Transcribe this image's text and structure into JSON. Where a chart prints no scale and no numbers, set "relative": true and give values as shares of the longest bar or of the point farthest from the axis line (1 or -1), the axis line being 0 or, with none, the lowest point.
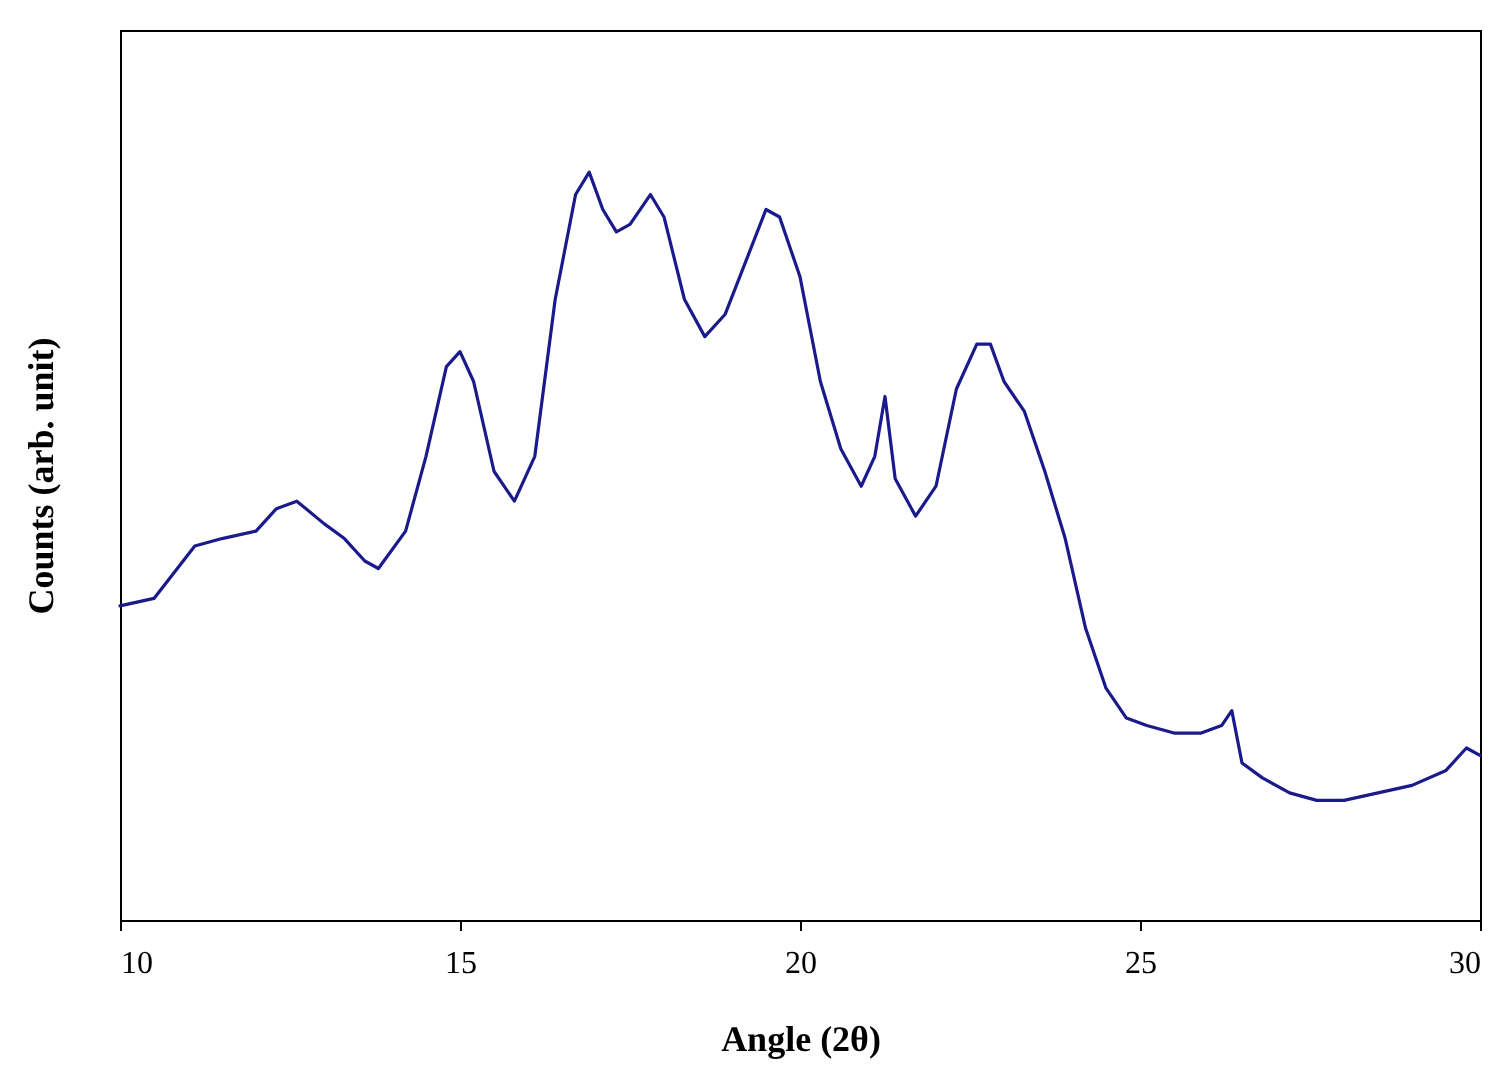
{
  "chart_data": {
    "type": "line",
    "xlabel": "Angle (2θ)",
    "ylabel": "Counts (arb. unit)",
    "relative": true,
    "xlim": [
      10,
      30
    ],
    "xticks": [
      10,
      15,
      20,
      25,
      30
    ],
    "grid": false,
    "tick_labels": "x",
    "marker": "none",
    "line_style": "solid",
    "series": [
      {
        "color": "#1a1a8c",
        "x": [
          10,
          10.5,
          11.1,
          11.5,
          12,
          12.3,
          12.6,
          13,
          13.3,
          13.6,
          13.8,
          14.2,
          14.5,
          14.8,
          15,
          15.2,
          15.5,
          15.8,
          16.1,
          16.4,
          16.7,
          16.9,
          17.1,
          17.3,
          17.5,
          17.8,
          18,
          18.3,
          18.6,
          18.9,
          19.2,
          19.5,
          19.7,
          20,
          20.3,
          20.6,
          20.9,
          21.1,
          21.25,
          21.4,
          21.7,
          22,
          22.3,
          22.6,
          22.8,
          23,
          23.3,
          23.6,
          23.9,
          24.2,
          24.5,
          24.8,
          25.1,
          25.5,
          25.9,
          26.2,
          26.35,
          26.5,
          26.8,
          27.2,
          27.6,
          28,
          28.5,
          29,
          29.5,
          29.8,
          30
        ],
        "values": [
          0.42,
          0.43,
          0.5,
          0.51,
          0.52,
          0.55,
          0.56,
          0.53,
          0.51,
          0.48,
          0.47,
          0.52,
          0.62,
          0.74,
          0.76,
          0.72,
          0.6,
          0.56,
          0.62,
          0.83,
          0.97,
          1.0,
          0.95,
          0.92,
          0.93,
          0.97,
          0.94,
          0.83,
          0.78,
          0.81,
          0.88,
          0.95,
          0.94,
          0.86,
          0.72,
          0.63,
          0.58,
          0.62,
          0.7,
          0.59,
          0.54,
          0.58,
          0.71,
          0.77,
          0.77,
          0.72,
          0.68,
          0.6,
          0.51,
          0.39,
          0.31,
          0.27,
          0.26,
          0.25,
          0.25,
          0.26,
          0.28,
          0.21,
          0.19,
          0.17,
          0.16,
          0.16,
          0.17,
          0.18,
          0.2,
          0.23,
          0.22
        ]
      }
    ]
  }
}
